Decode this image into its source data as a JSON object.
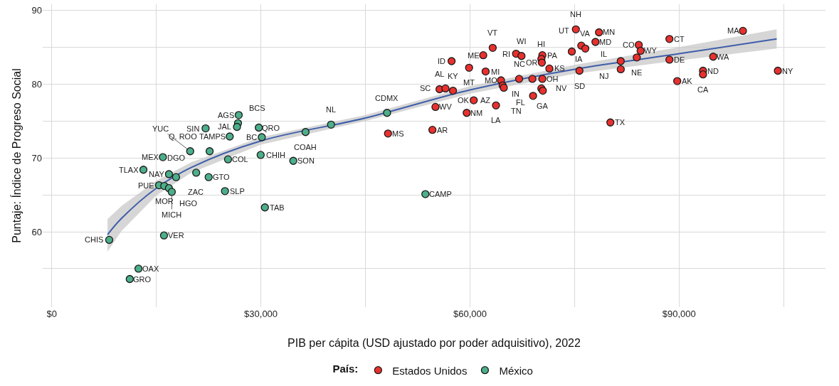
{
  "chart_data": {
    "type": "scatter",
    "xlabel": "PIB per cápita (USD ajustado por poder adquisitivo), 2022",
    "ylabel": "Puntaje: Índice de Progreso Social",
    "legend_title": "País:",
    "legend": "bottom",
    "grid": true,
    "marker": "circle",
    "xlim": [
      -1300,
      111000
    ],
    "ylim": [
      49.8,
      90.8
    ],
    "xticks": [
      {
        "value": 0,
        "label": "$0"
      },
      {
        "value": 15000,
        "label": null
      },
      {
        "value": 30000,
        "label": "$30,000"
      },
      {
        "value": 45000,
        "label": null
      },
      {
        "value": 60000,
        "label": "$60,000"
      },
      {
        "value": 75000,
        "label": null
      },
      {
        "value": 90000,
        "label": "$90,000"
      },
      {
        "value": 105000,
        "label": null
      }
    ],
    "yticks": [
      {
        "value": 55,
        "label": null
      },
      60,
      {
        "value": 65,
        "label": null
      },
      70,
      {
        "value": 75,
        "label": null
      },
      80,
      {
        "value": 85,
        "label": null
      },
      90
    ],
    "series": [
      {
        "name": "Estados Unidos",
        "color": "#e8312f",
        "x": [
          63260,
          57360,
          61900,
          59870,
          62240,
          66610,
          67390,
          70380,
          70240,
          70310,
          64450,
          64680,
          64850,
          67050,
          68950,
          70380,
          70240,
          70450,
          69050,
          55630,
          56480,
          57560,
          60540,
          63730,
          59530,
          55050,
          48240,
          54610,
          75970,
          75190,
          78510,
          78000,
          76550,
          74610,
          71390,
          75700,
          84210,
          84480,
          83930,
          81630,
          81630,
          88610,
          88610,
          89730,
          93430,
          93430,
          94890,
          99160,
          104170,
          80140
        ],
        "values": [
          84.9,
          83.1,
          83.9,
          82.2,
          81.7,
          84.1,
          83.8,
          83.9,
          83.4,
          82.9,
          80.5,
          79.8,
          79.5,
          80.7,
          80.7,
          80.7,
          79.4,
          79.1,
          78.4,
          79.3,
          79.4,
          79.1,
          77.8,
          77.1,
          76.1,
          76.9,
          73.3,
          73.8,
          85.2,
          87.4,
          87.0,
          85.7,
          84.8,
          84.4,
          82.1,
          81.8,
          85.3,
          84.5,
          83.6,
          83.1,
          82.0,
          86.1,
          83.3,
          80.4,
          81.8,
          81.3,
          83.7,
          87.2,
          81.8,
          74.8
        ]
      },
      {
        "name": "México",
        "color": "#4daf8a",
        "x": [
          26820,
          26720,
          26570,
          29700,
          30130,
          22070,
          25530,
          19860,
          22650,
          15940,
          25290,
          29970,
          13150,
          16810,
          17830,
          20720,
          22510,
          15390,
          16140,
          16810,
          17220,
          24850,
          30580,
          34650,
          36410,
          40070,
          48100,
          53600,
          8240,
          16100,
          12440,
          11190
        ],
        "values": [
          75.8,
          74.7,
          74.2,
          74.1,
          72.8,
          74.0,
          72.9,
          70.9,
          70.9,
          70.1,
          69.8,
          70.4,
          68.4,
          67.8,
          67.4,
          68.0,
          67.4,
          66.3,
          66.2,
          65.9,
          65.4,
          65.5,
          63.3,
          69.6,
          73.5,
          74.5,
          76.1,
          65.1,
          58.9,
          59.5,
          55.0,
          53.6
        ]
      },
      {
        "type": "line",
        "color": "#3f5eaa",
        "marker": "none",
        "x": [
          8000,
          10000,
          15000,
          20000,
          30000,
          45000,
          60000,
          75000,
          90000,
          104000
        ],
        "values": [
          59.6,
          61.8,
          65.9,
          68.7,
          72.3,
          75.4,
          79.2,
          82.0,
          84.1,
          86.1
        ],
        "lower": [
          57.3,
          60.1,
          64.9,
          68.0,
          71.8,
          75.0,
          78.7,
          81.4,
          83.2,
          84.8
        ],
        "upper": [
          61.7,
          63.5,
          66.9,
          69.4,
          72.8,
          75.8,
          79.7,
          82.6,
          85.0,
          87.4
        ]
      }
    ],
    "annotations": [
      {
        "text": "VT",
        "x": 63260,
        "y": 84.9
      },
      {
        "text": "ID",
        "x": 57360,
        "y": 83.1
      },
      {
        "text": "ME",
        "x": 61900,
        "y": 83.9
      },
      {
        "text": "MT",
        "x": 59870,
        "y": 82.2
      },
      {
        "text": "MI",
        "x": 62240,
        "y": 81.7
      },
      {
        "text": "RI",
        "x": 66610,
        "y": 84.1
      },
      {
        "text": "WI",
        "x": 67390,
        "y": 83.8
      },
      {
        "text": "PA",
        "x": 70380,
        "y": 83.9
      },
      {
        "text": "HI",
        "x": 70240,
        "y": 83.4
      },
      {
        "text": "OR",
        "x": 70310,
        "y": 82.9
      },
      {
        "text": "MO",
        "x": 64450,
        "y": 80.5
      },
      {
        "text": "AZ",
        "x": 64680,
        "y": 79.8
      },
      {
        "text": "FL",
        "x": 64850,
        "y": 79.5
      },
      {
        "text": "NC",
        "x": 67050,
        "y": 80.7
      },
      {
        "text": "IN",
        "x": 68950,
        "y": 80.7
      },
      {
        "text": "OH",
        "x": 70380,
        "y": 80.7
      },
      {
        "text": "NV",
        "x": 70240,
        "y": 79.4
      },
      {
        "text": "GA",
        "x": 70450,
        "y": 79.1
      },
      {
        "text": "TN",
        "x": 69050,
        "y": 78.4
      },
      {
        "text": "AL",
        "x": 55630,
        "y": 79.3
      },
      {
        "text": "SC",
        "x": 56480,
        "y": 79.4
      },
      {
        "text": "KY",
        "x": 57560,
        "y": 79.1
      },
      {
        "text": "OK",
        "x": 60540,
        "y": 77.8
      },
      {
        "text": "LA",
        "x": 63730,
        "y": 77.1
      },
      {
        "text": "NM",
        "x": 59530,
        "y": 76.1
      },
      {
        "text": "WV",
        "x": 55050,
        "y": 76.9
      },
      {
        "text": "MS",
        "x": 48240,
        "y": 73.3
      },
      {
        "text": "AR",
        "x": 54610,
        "y": 73.8
      },
      {
        "text": "UT",
        "x": 75970,
        "y": 85.2
      },
      {
        "text": "NH",
        "x": 75190,
        "y": 87.4
      },
      {
        "text": "MN",
        "x": 78510,
        "y": 87.0
      },
      {
        "text": "MD",
        "x": 78000,
        "y": 85.7
      },
      {
        "text": "VA",
        "x": 76550,
        "y": 84.8
      },
      {
        "text": "IA",
        "x": 74610,
        "y": 84.4
      },
      {
        "text": "KS",
        "x": 71390,
        "y": 82.1
      },
      {
        "text": "SD",
        "x": 75700,
        "y": 81.8
      },
      {
        "text": "CO",
        "x": 84210,
        "y": 85.3
      },
      {
        "text": "WY",
        "x": 84480,
        "y": 84.5
      },
      {
        "text": "NE",
        "x": 83930,
        "y": 83.6
      },
      {
        "text": "NJ",
        "x": 81630,
        "y": 83.1
      },
      {
        "text": "IL",
        "x": 81630,
        "y": 82.0
      },
      {
        "text": "CT",
        "x": 88610,
        "y": 86.1
      },
      {
        "text": "DE",
        "x": 88610,
        "y": 83.3
      },
      {
        "text": "AK",
        "x": 89730,
        "y": 80.4
      },
      {
        "text": "ND",
        "x": 93430,
        "y": 81.8
      },
      {
        "text": "CA",
        "x": 93430,
        "y": 81.3
      },
      {
        "text": "WA",
        "x": 94890,
        "y": 83.7
      },
      {
        "text": "MA",
        "x": 99160,
        "y": 87.2
      },
      {
        "text": "NY",
        "x": 104170,
        "y": 81.8
      },
      {
        "text": "TX",
        "x": 80140,
        "y": 74.8
      },
      {
        "text": "AGS",
        "x": 26820,
        "y": 75.8
      },
      {
        "text": "BCS",
        "x": 26720,
        "y": 74.7
      },
      {
        "text": "JAL",
        "x": 26570,
        "y": 74.2
      },
      {
        "text": "QRO",
        "x": 29700,
        "y": 74.1
      },
      {
        "text": "BC",
        "x": 30130,
        "y": 72.8
      },
      {
        "text": "SIN",
        "x": 22070,
        "y": 74.0
      },
      {
        "text": "TAMPS",
        "x": 25530,
        "y": 72.9
      },
      {
        "text": "YUC",
        "x": 19860,
        "y": 70.9
      },
      {
        "text": "Q. ROO",
        "x": 22650,
        "y": 70.9
      },
      {
        "text": "MEX",
        "x": 15940,
        "y": 70.1
      },
      {
        "text": "COL",
        "x": 25290,
        "y": 69.8
      },
      {
        "text": "CHIH",
        "x": 29970,
        "y": 70.4
      },
      {
        "text": "TLAX",
        "x": 13150,
        "y": 68.4
      },
      {
        "text": "NAY",
        "x": 16810,
        "y": 67.8
      },
      {
        "text": "ZAC",
        "x": 17830,
        "y": 67.4
      },
      {
        "text": "DGO",
        "x": 20720,
        "y": 68.0
      },
      {
        "text": "GTO",
        "x": 22510,
        "y": 67.4
      },
      {
        "text": "PUE",
        "x": 15390,
        "y": 66.3
      },
      {
        "text": "MOR",
        "x": 16140,
        "y": 66.2
      },
      {
        "text": "HGO",
        "x": 16810,
        "y": 65.9
      },
      {
        "text": "MICH",
        "x": 17220,
        "y": 65.4
      },
      {
        "text": "SLP",
        "x": 24850,
        "y": 65.5
      },
      {
        "text": "TAB",
        "x": 30580,
        "y": 63.3
      },
      {
        "text": "SON",
        "x": 34650,
        "y": 69.6
      },
      {
        "text": "COAH",
        "x": 36410,
        "y": 73.5
      },
      {
        "text": "NL",
        "x": 40070,
        "y": 74.5
      },
      {
        "text": "CDMX",
        "x": 48100,
        "y": 76.1
      },
      {
        "text": "CAMP",
        "x": 53600,
        "y": 65.1
      },
      {
        "text": "CHIS",
        "x": 8240,
        "y": 58.9
      },
      {
        "text": "VER",
        "x": 16100,
        "y": 59.5
      },
      {
        "text": "OAX",
        "x": 12440,
        "y": 55.0
      },
      {
        "text": "GRO",
        "x": 11190,
        "y": 53.6
      }
    ]
  }
}
